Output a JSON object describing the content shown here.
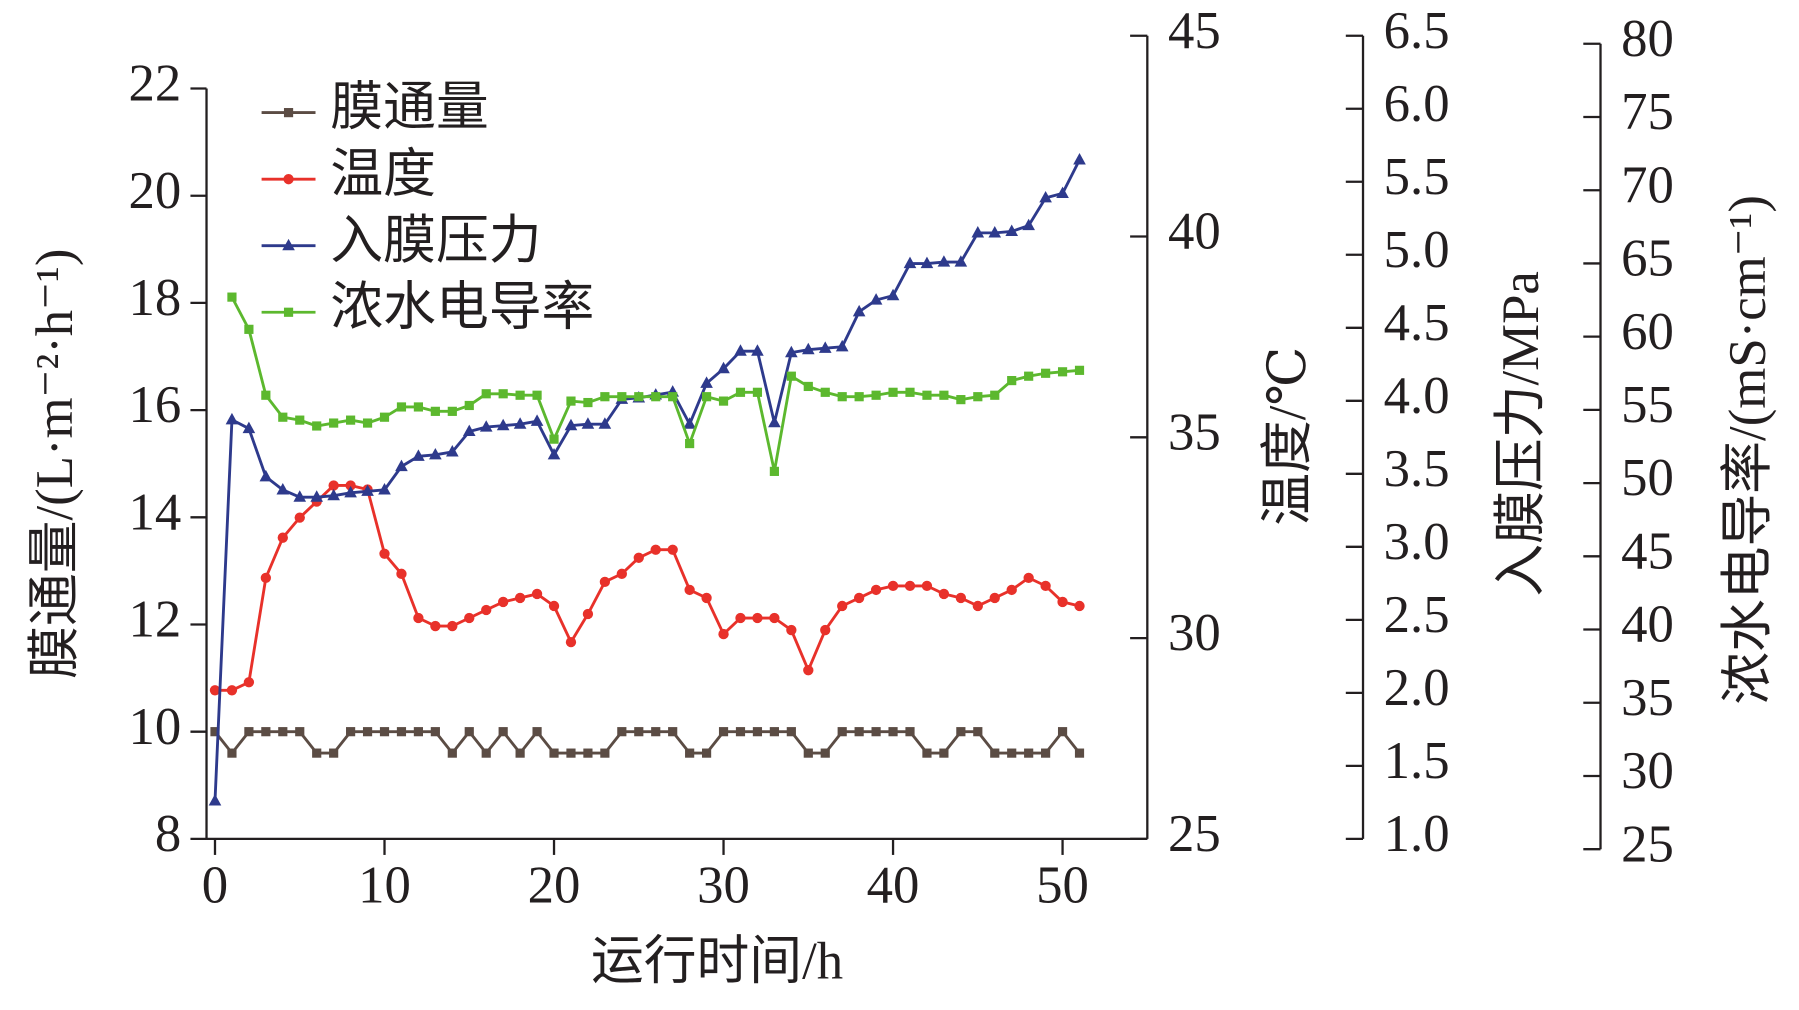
{
  "chart_data": {
    "type": "line",
    "x_label": "运行时间/h",
    "y_label": "膜通量/(L·m⁻²·h⁻¹)",
    "y2_label": "温度/℃",
    "y3_label": "入膜压力/MPa",
    "y4_label": "浓水电导率/(mS·cm⁻¹)",
    "x": [
      0,
      1,
      2,
      3,
      4,
      5,
      6,
      7,
      8,
      9,
      10,
      11,
      12,
      13,
      14,
      15,
      16,
      17,
      18,
      19,
      20,
      21,
      22,
      23,
      24,
      25,
      26,
      27,
      28,
      29,
      30,
      31,
      32,
      33,
      34,
      35,
      36,
      37,
      38,
      39,
      40,
      41,
      42,
      43,
      44,
      45,
      46,
      47,
      48,
      49,
      50,
      51
    ],
    "xlim": [
      -0.5,
      55
    ],
    "xticks": [
      0,
      10,
      20,
      30,
      40,
      50
    ],
    "ylim": [
      8,
      22
    ],
    "yticks": [
      8,
      10,
      12,
      14,
      16,
      18,
      20,
      22
    ],
    "y2lim": [
      25,
      45
    ],
    "y2ticks": [
      25,
      30,
      35,
      40,
      45
    ],
    "y3lim": [
      1.0,
      6.5
    ],
    "y3ticks": [
      {
        "value": 1.0,
        "label": "1.0"
      },
      1.5,
      {
        "value": 2.0,
        "label": "2.0"
      },
      2.5,
      {
        "value": 3.0,
        "label": "3.0"
      },
      3.5,
      {
        "value": 4.0,
        "label": "4.0"
      },
      4.5,
      {
        "value": 5.0,
        "label": "5.0"
      },
      5.5,
      {
        "value": 6.0,
        "label": "6.0"
      },
      6.5
    ],
    "y4lim": [
      25,
      80
    ],
    "y4ticks": [
      25,
      30,
      35,
      40,
      45,
      50,
      55,
      60,
      65,
      70,
      75,
      80
    ],
    "series": [
      {
        "name": "膜通量",
        "color": "#5b4c44",
        "marker": "square",
        "axis": "y",
        "values": [
          10,
          9.6,
          10,
          10,
          10,
          10,
          9.6,
          9.6,
          10,
          10,
          10,
          10,
          10,
          10,
          9.6,
          10,
          9.6,
          10,
          9.6,
          10,
          9.6,
          9.6,
          9.6,
          9.6,
          10,
          10,
          10,
          10,
          9.6,
          9.6,
          10,
          10,
          10,
          10,
          10,
          9.6,
          9.6,
          10,
          10,
          10,
          10,
          10,
          9.6,
          9.6,
          10,
          10,
          9.6,
          9.6,
          9.6,
          9.6,
          10,
          9.6
        ]
      },
      {
        "name": "温度",
        "color": "#e8312a",
        "marker": "circle",
        "axis": "y2",
        "values": [
          28.7,
          28.7,
          28.9,
          31.5,
          32.5,
          33.0,
          33.4,
          33.8,
          33.8,
          33.7,
          32.1,
          31.6,
          30.5,
          30.3,
          30.3,
          30.5,
          30.7,
          30.9,
          31.0,
          31.1,
          30.8,
          29.9,
          30.6,
          31.4,
          31.6,
          32.0,
          32.2,
          32.2,
          31.2,
          31.0,
          30.1,
          30.5,
          30.5,
          30.5,
          30.2,
          29.2,
          30.2,
          30.8,
          31.0,
          31.2,
          31.3,
          31.3,
          31.3,
          31.1,
          31.0,
          30.8,
          31.0,
          31.2,
          31.5,
          31.3,
          30.9,
          30.8
        ]
      },
      {
        "name": "入膜压力",
        "color": "#2e3a8c",
        "marker": "triangle",
        "axis": "y3",
        "values": [
          1.26,
          3.87,
          3.81,
          3.48,
          3.39,
          3.34,
          3.34,
          3.35,
          3.37,
          3.38,
          3.39,
          3.55,
          3.62,
          3.63,
          3.65,
          3.79,
          3.82,
          3.83,
          3.84,
          3.86,
          3.63,
          3.83,
          3.84,
          3.84,
          4.01,
          4.02,
          4.04,
          4.06,
          3.84,
          4.12,
          4.22,
          4.34,
          4.34,
          3.85,
          4.33,
          4.35,
          4.36,
          4.37,
          4.61,
          4.69,
          4.72,
          4.94,
          4.94,
          4.95,
          4.95,
          5.15,
          5.15,
          5.16,
          5.2,
          5.39,
          5.42,
          5.65
        ]
      },
      {
        "name": "浓水电导率",
        "color": "#5cb82e",
        "marker": "square",
        "axis": "y4",
        "values": [
          null,
          62.7,
          60.5,
          56.0,
          54.5,
          54.3,
          53.9,
          54.1,
          54.3,
          54.1,
          54.5,
          55.2,
          55.2,
          54.9,
          54.9,
          55.3,
          56.1,
          56.1,
          56.0,
          56.0,
          53.0,
          55.6,
          55.5,
          55.9,
          55.9,
          55.9,
          55.9,
          55.9,
          52.7,
          55.9,
          55.6,
          56.2,
          56.2,
          50.8,
          57.3,
          56.6,
          56.2,
          55.9,
          55.9,
          56.0,
          56.2,
          56.2,
          56.0,
          56.0,
          55.7,
          55.9,
          56.0,
          57.0,
          57.3,
          57.5,
          57.6,
          57.7
        ]
      }
    ]
  }
}
